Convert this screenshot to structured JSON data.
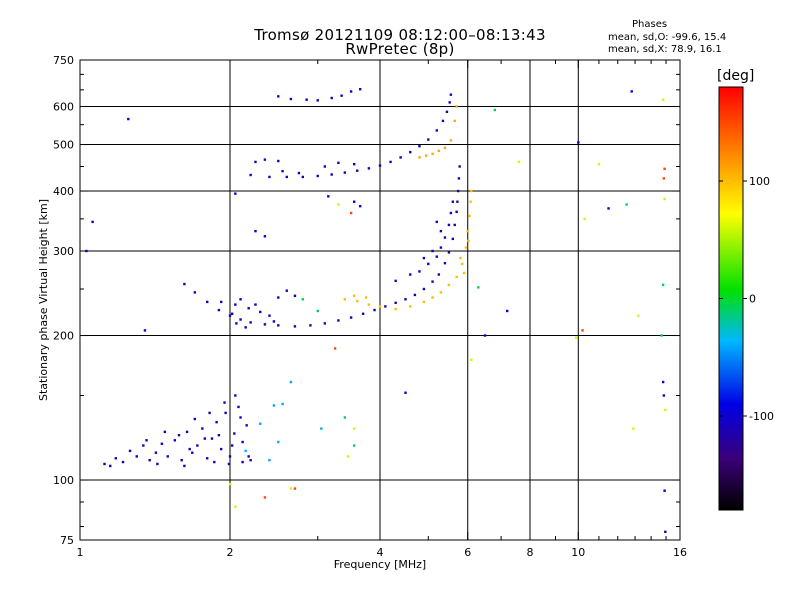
{
  "header": {
    "title_line1": "Tromsø 20121109 08:12:00–08:13:43",
    "title_line2": "RwPretec (8p)"
  },
  "phases_box": {
    "title": "Phases",
    "line_o": "mean, sd,O: -99.6, 15.4",
    "line_x": "mean, sd,X:  78.9, 16.1"
  },
  "chart_data": {
    "type": "scatter",
    "xlabel": "Frequency [MHz]",
    "ylabel": "Stationary phase Virtual Height [km]",
    "x_scale": "log",
    "y_scale": "log",
    "xlim": [
      1,
      16
    ],
    "ylim": [
      75,
      750
    ],
    "x_ticks": [
      1,
      2,
      4,
      6,
      8,
      10,
      16
    ],
    "y_ticks": [
      75,
      100,
      200,
      300,
      400,
      500,
      600,
      750
    ],
    "grid_x": [
      2,
      4,
      6,
      8,
      10
    ],
    "grid_y": [
      100,
      200,
      300,
      400,
      500,
      600
    ],
    "colorbar": {
      "label": "[deg]",
      "range": [
        -180,
        180
      ],
      "ticks": [
        100,
        0,
        -100
      ]
    },
    "series": [
      {
        "points": [
          [
            1.12,
            108
          ],
          [
            1.15,
            107
          ],
          [
            1.18,
            111
          ],
          [
            1.22,
            109
          ],
          [
            1.26,
            115
          ],
          [
            1.3,
            112
          ],
          [
            1.34,
            118
          ],
          [
            1.38,
            110
          ],
          [
            1.42,
            114
          ],
          [
            1.46,
            119
          ],
          [
            1.5,
            112
          ],
          [
            1.55,
            121
          ],
          [
            1.6,
            110
          ],
          [
            1.64,
            126
          ],
          [
            1.68,
            114
          ],
          [
            1.72,
            118
          ],
          [
            1.76,
            128
          ],
          [
            1.8,
            111
          ],
          [
            1.84,
            122
          ],
          [
            1.88,
            132
          ],
          [
            1.92,
            116
          ],
          [
            1.96,
            138
          ],
          [
            2.0,
            112
          ],
          [
            2.04,
            125
          ],
          [
            2.08,
            142
          ],
          [
            2.12,
            120
          ],
          [
            2.16,
            130
          ],
          [
            1.7,
            134
          ],
          [
            1.82,
            138
          ],
          [
            1.95,
            145
          ],
          [
            2.05,
            150
          ],
          [
            2.1,
            135
          ],
          [
            1.58,
            124
          ],
          [
            1.48,
            126
          ],
          [
            1.36,
            121
          ],
          [
            2.18,
            112
          ],
          [
            2.02,
            118
          ],
          [
            1.9,
            124
          ],
          [
            1.78,
            122
          ],
          [
            1.66,
            116
          ],
          [
            1.43,
            108
          ],
          [
            1.62,
            107
          ],
          [
            1.86,
            109
          ],
          [
            1.99,
            108
          ],
          [
            2.12,
            109
          ],
          [
            2.2,
            110
          ]
        ],
        "phase": -110
      },
      {
        "points": [
          [
            2.15,
            115
          ],
          [
            2.3,
            131
          ],
          [
            2.45,
            143
          ],
          [
            2.55,
            144
          ],
          [
            2.65,
            160
          ],
          [
            2.5,
            120
          ],
          [
            2.4,
            110
          ],
          [
            3.05,
            128
          ]
        ],
        "phase": -40
      },
      {
        "points": [
          [
            1.62,
            256
          ],
          [
            1.7,
            246
          ],
          [
            1.8,
            235
          ],
          [
            1.9,
            226
          ],
          [
            2.0,
            220
          ],
          [
            2.1,
            216
          ],
          [
            2.2,
            213
          ],
          [
            2.35,
            211
          ],
          [
            2.5,
            210
          ],
          [
            2.7,
            209
          ],
          [
            2.9,
            210
          ],
          [
            3.1,
            212
          ],
          [
            3.3,
            215
          ],
          [
            3.5,
            218
          ],
          [
            3.7,
            222
          ],
          [
            3.9,
            226
          ],
          [
            4.1,
            230
          ],
          [
            4.3,
            234
          ],
          [
            4.5,
            238
          ],
          [
            4.7,
            243
          ],
          [
            4.9,
            250
          ],
          [
            5.1,
            259
          ],
          [
            5.25,
            268
          ],
          [
            5.4,
            283
          ],
          [
            5.5,
            298
          ],
          [
            5.6,
            318
          ],
          [
            5.65,
            340
          ],
          [
            5.7,
            362
          ],
          [
            5.72,
            380
          ],
          [
            5.74,
            400
          ],
          [
            5.76,
            425
          ],
          [
            5.78,
            450
          ]
        ],
        "phase": -115
      },
      {
        "points": [
          [
            1.92,
            235
          ],
          [
            2.02,
            222
          ],
          [
            2.1,
            238
          ],
          [
            2.18,
            228
          ],
          [
            2.25,
            232
          ],
          [
            2.3,
            224
          ],
          [
            2.4,
            220
          ],
          [
            2.5,
            240
          ],
          [
            2.6,
            248
          ],
          [
            2.7,
            242
          ],
          [
            2.45,
            214
          ],
          [
            2.15,
            208
          ],
          [
            2.06,
            212
          ],
          [
            4.3,
            260
          ],
          [
            4.6,
            268
          ],
          [
            4.8,
            272
          ],
          [
            5.0,
            282
          ],
          [
            5.2,
            292
          ],
          [
            5.3,
            305
          ],
          [
            5.4,
            320
          ],
          [
            5.5,
            340
          ],
          [
            5.55,
            360
          ],
          [
            5.6,
            380
          ],
          [
            5.2,
            345
          ],
          [
            5.3,
            330
          ],
          [
            5.1,
            300
          ],
          [
            4.9,
            290
          ]
        ],
        "phase": -105
      },
      {
        "points": [
          [
            3.4,
            238
          ],
          [
            3.6,
            236
          ],
          [
            3.8,
            232
          ],
          [
            4.0,
            230
          ],
          [
            4.3,
            227
          ],
          [
            4.6,
            230
          ],
          [
            4.9,
            235
          ],
          [
            5.1,
            240
          ],
          [
            5.3,
            246
          ],
          [
            5.5,
            255
          ],
          [
            5.7,
            265
          ],
          [
            5.85,
            282
          ],
          [
            5.95,
            305
          ],
          [
            6.0,
            330
          ],
          [
            6.05,
            355
          ],
          [
            6.08,
            380
          ],
          [
            6.1,
            400
          ],
          [
            5.9,
            270
          ],
          [
            5.8,
            290
          ],
          [
            6.02,
            315
          ],
          [
            3.55,
            242
          ],
          [
            3.75,
            240
          ]
        ],
        "phase": 100
      },
      {
        "points": [
          [
            2.2,
            432
          ],
          [
            2.4,
            428
          ],
          [
            2.6,
            428
          ],
          [
            2.8,
            428
          ],
          [
            3.0,
            430
          ],
          [
            3.2,
            433
          ],
          [
            3.4,
            437
          ],
          [
            3.6,
            441
          ],
          [
            3.8,
            446
          ],
          [
            4.0,
            452
          ],
          [
            4.2,
            460
          ],
          [
            4.4,
            470
          ],
          [
            4.6,
            482
          ],
          [
            4.8,
            496
          ],
          [
            5.0,
            512
          ],
          [
            5.2,
            535
          ],
          [
            5.35,
            560
          ],
          [
            5.45,
            585
          ],
          [
            5.52,
            612
          ],
          [
            5.55,
            635
          ],
          [
            2.25,
            460
          ],
          [
            2.35,
            465
          ],
          [
            2.5,
            462
          ],
          [
            3.1,
            450
          ],
          [
            3.3,
            458
          ],
          [
            3.55,
            455
          ],
          [
            2.55,
            440
          ],
          [
            2.75,
            436
          ]
        ],
        "phase": -110
      },
      {
        "points": [
          [
            4.8,
            470
          ],
          [
            4.95,
            474
          ],
          [
            5.1,
            478
          ],
          [
            5.25,
            485
          ],
          [
            5.4,
            492
          ],
          [
            5.55,
            510
          ],
          [
            5.65,
            560
          ],
          [
            5.7,
            600
          ]
        ],
        "phase": 110
      },
      {
        "points": [
          [
            2.5,
            630
          ],
          [
            2.65,
            622
          ],
          [
            2.85,
            620
          ],
          [
            3.0,
            618
          ],
          [
            3.2,
            625
          ],
          [
            3.35,
            632
          ],
          [
            3.5,
            645
          ],
          [
            3.65,
            652
          ]
        ],
        "phase": -105
      },
      {
        "points": [
          [
            1.03,
            300
          ],
          [
            1.06,
            345
          ],
          [
            1.25,
            565
          ],
          [
            1.35,
            205
          ],
          [
            2.05,
            232
          ],
          [
            2.05,
            395
          ],
          [
            2.25,
            330
          ],
          [
            2.35,
            322
          ],
          [
            3.15,
            390
          ],
          [
            3.55,
            380
          ],
          [
            3.65,
            372
          ],
          [
            4.5,
            152
          ],
          [
            6.5,
            200
          ],
          [
            7.2,
            225
          ],
          [
            14.8,
            160
          ],
          [
            14.85,
            150
          ],
          [
            14.9,
            95
          ],
          [
            14.95,
            78
          ],
          [
            10.0,
            505
          ],
          [
            11.5,
            368
          ],
          [
            12.8,
            645
          ]
        ],
        "phase": -95
      },
      {
        "points": [
          [
            2.8,
            238
          ],
          [
            3.0,
            225
          ],
          [
            3.4,
            135
          ],
          [
            3.55,
            118
          ],
          [
            6.3,
            252
          ],
          [
            6.8,
            590
          ],
          [
            12.5,
            375
          ],
          [
            14.7,
            200
          ],
          [
            14.8,
            255
          ]
        ],
        "phase": -10
      },
      {
        "points": [
          [
            2.0,
            98
          ],
          [
            2.65,
            96
          ],
          [
            3.3,
            375
          ],
          [
            3.45,
            112
          ],
          [
            6.1,
            178
          ],
          [
            7.6,
            460
          ],
          [
            10.3,
            350
          ],
          [
            11.0,
            455
          ],
          [
            12.9,
            128
          ],
          [
            14.8,
            620
          ],
          [
            14.9,
            385
          ],
          [
            14.95,
            140
          ],
          [
            9.9,
            198
          ],
          [
            13.2,
            220
          ],
          [
            2.05,
            88
          ],
          [
            3.55,
            128
          ]
        ],
        "phase": 60
      },
      {
        "points": [
          [
            2.7,
            96
          ],
          [
            2.35,
            92
          ],
          [
            3.25,
            188
          ],
          [
            3.5,
            360
          ],
          [
            10.2,
            205
          ],
          [
            14.9,
            445
          ],
          [
            14.85,
            425
          ]
        ],
        "phase": 150
      }
    ]
  }
}
